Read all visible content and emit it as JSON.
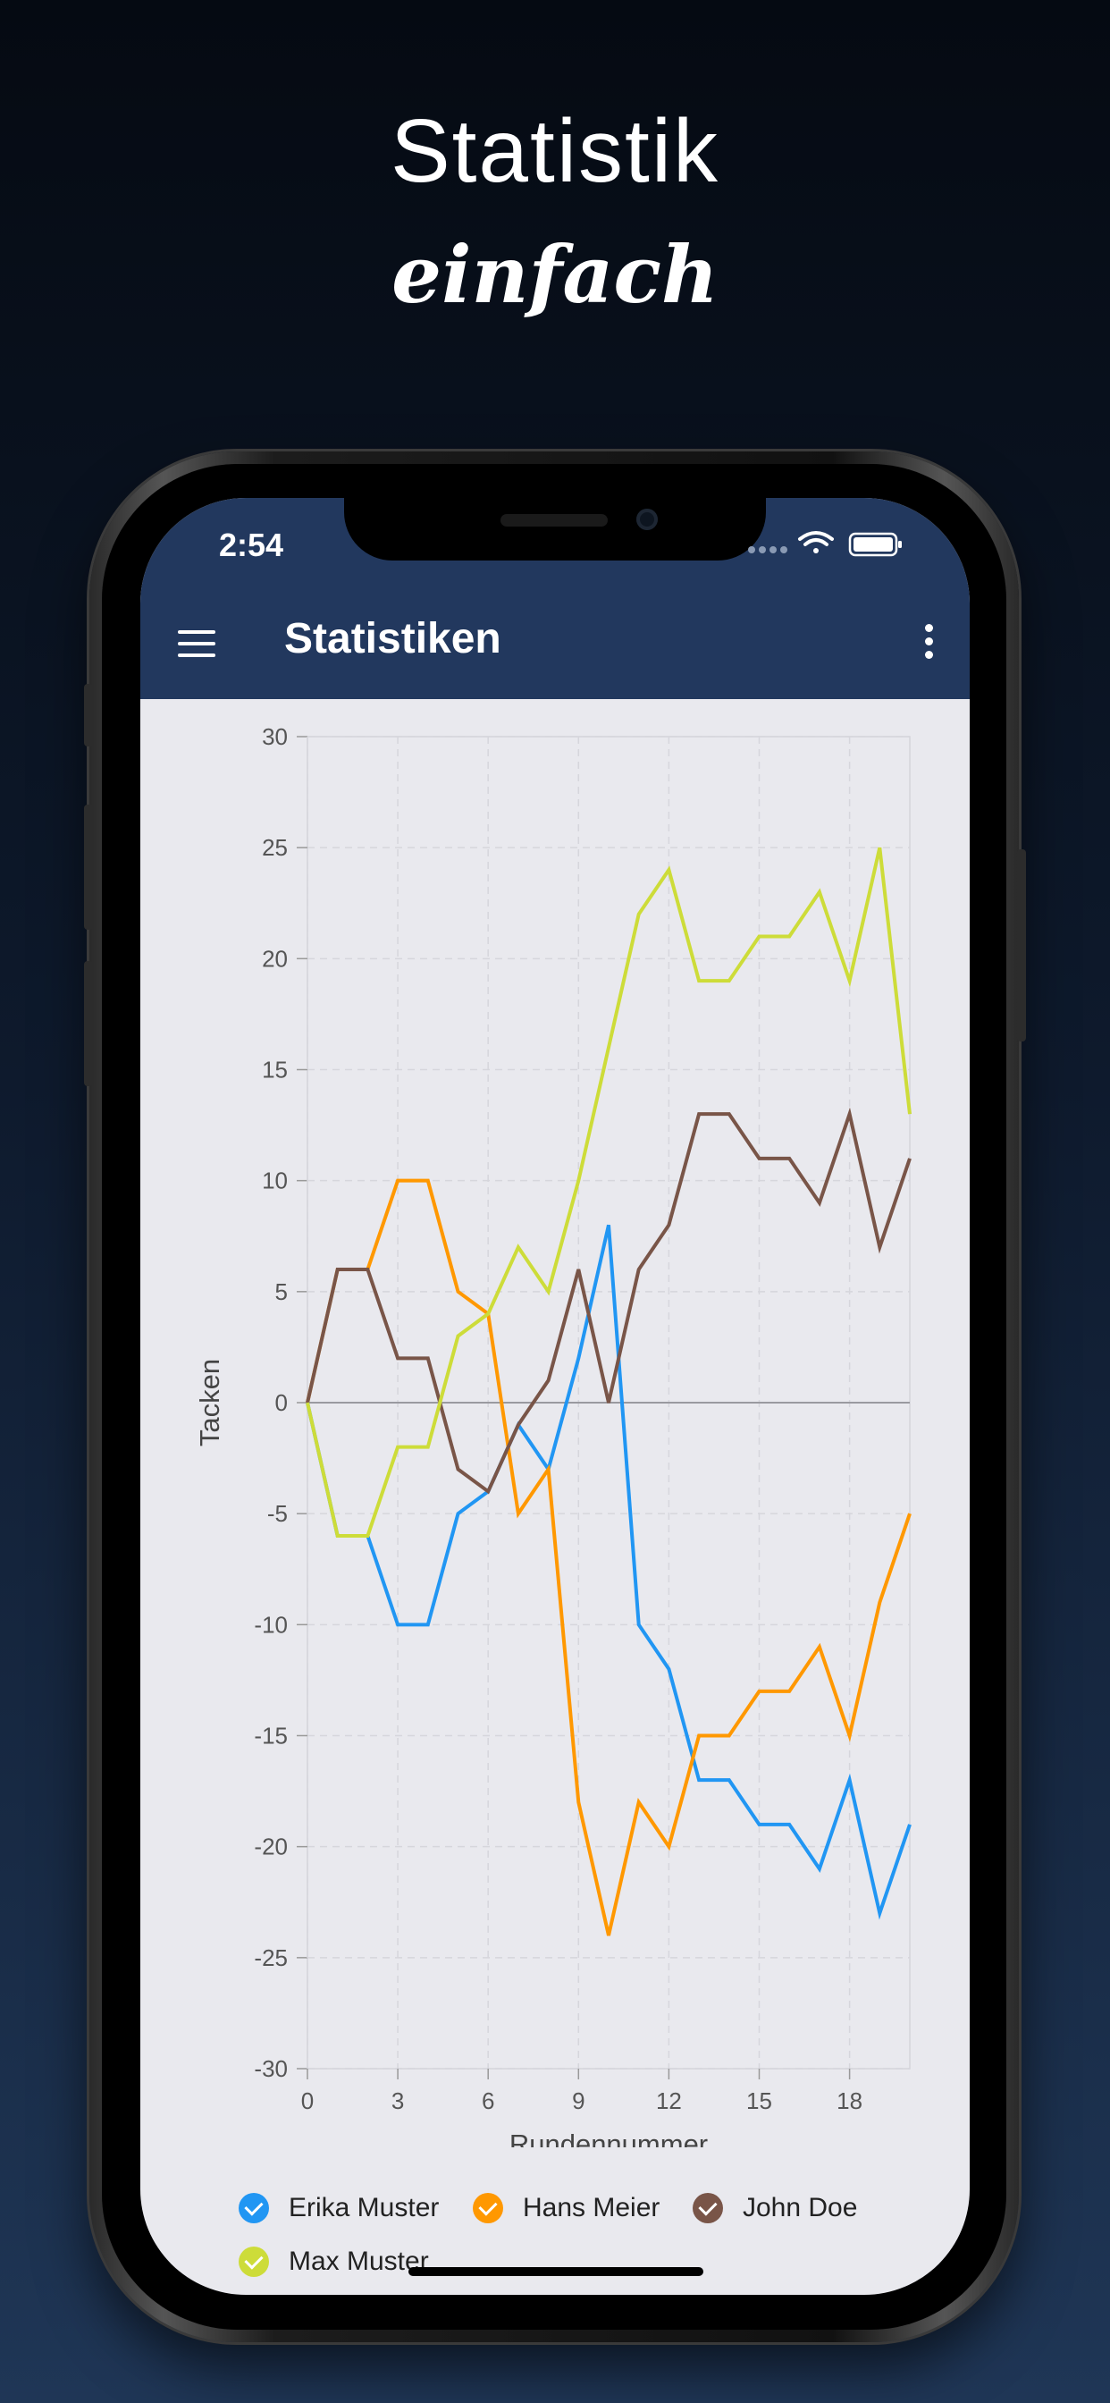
{
  "promo": {
    "headline": "Statistik",
    "subline": "einfach"
  },
  "status_bar": {
    "time": "2:54",
    "icons": [
      "signal-dots-icon",
      "wifi-icon",
      "battery-icon"
    ]
  },
  "app_bar": {
    "title": "Statistiken",
    "menu_icon": "hamburger-menu-icon",
    "more_icon": "more-vertical-icon",
    "color": "#22385e"
  },
  "chart_data": {
    "type": "line",
    "title": "",
    "xlabel": "Rundennummer",
    "ylabel": "Tacken",
    "xlim": [
      0,
      20
    ],
    "ylim": [
      -30,
      30
    ],
    "x_ticks": [
      0,
      3,
      6,
      9,
      12,
      15,
      18
    ],
    "y_ticks": [
      30,
      25,
      20,
      15,
      10,
      5,
      0,
      -5,
      -10,
      -15,
      -20,
      -25,
      -30
    ],
    "grid": true,
    "legend_position": "bottom",
    "x": [
      0,
      1,
      2,
      3,
      4,
      5,
      6,
      7,
      8,
      9,
      10,
      11,
      12,
      13,
      14,
      15,
      16,
      17,
      18,
      19,
      20
    ],
    "series": [
      {
        "name": "Erika Muster",
        "color": "#2196f3",
        "values": [
          0,
          -6,
          -6,
          -10,
          -10,
          -5,
          -4,
          -1,
          -3,
          2,
          8,
          -10,
          -12,
          -17,
          -17,
          -19,
          -19,
          -21,
          -17,
          -23,
          -19
        ]
      },
      {
        "name": "Hans Meier",
        "color": "#ff9800",
        "values": [
          0,
          6,
          6,
          10,
          10,
          5,
          4,
          -5,
          -3,
          -18,
          -24,
          -18,
          -20,
          -15,
          -15,
          -13,
          -13,
          -11,
          -15,
          -9,
          -5
        ]
      },
      {
        "name": "John Doe",
        "color": "#795548",
        "values": [
          0,
          6,
          6,
          2,
          2,
          -3,
          -4,
          -1,
          1,
          6,
          0,
          6,
          8,
          13,
          13,
          11,
          11,
          9,
          13,
          7,
          11
        ]
      },
      {
        "name": "Max Muster",
        "color": "#cddc39",
        "values": [
          0,
          -6,
          -6,
          -2,
          -2,
          3,
          4,
          7,
          5,
          10,
          16,
          22,
          24,
          19,
          19,
          21,
          21,
          23,
          19,
          25,
          13
        ]
      }
    ]
  }
}
